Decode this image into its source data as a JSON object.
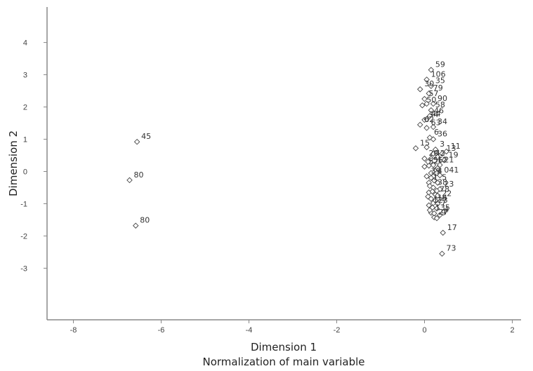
{
  "chart_data": {
    "type": "scatter",
    "xlabel": "Dimension 1",
    "xlabel2": "Normalization of main variable",
    "ylabel": "Dimension 2",
    "xlim": [
      -8.6,
      2.2
    ],
    "ylim": [
      -4.6,
      5.1
    ],
    "xticks": [
      -8,
      -6,
      -4,
      -2,
      0,
      2
    ],
    "yticks": [
      -3,
      -2,
      -1,
      0,
      1,
      2,
      3,
      4
    ],
    "grid": false,
    "marker": "diamond",
    "points": [
      {
        "x": -6.55,
        "y": 0.92,
        "label": "45"
      },
      {
        "x": -6.72,
        "y": -0.27,
        "label": "80"
      },
      {
        "x": -6.58,
        "y": -1.68,
        "label": "80"
      },
      {
        "x": 0.15,
        "y": 3.15,
        "label": "59"
      },
      {
        "x": 0.05,
        "y": 2.85,
        "label": "106"
      },
      {
        "x": 0.15,
        "y": 2.65,
        "label": "35"
      },
      {
        "x": -0.1,
        "y": 2.55,
        "label": "30"
      },
      {
        "x": 0.1,
        "y": 2.42,
        "label": "79"
      },
      {
        "x": 0.0,
        "y": 2.25,
        "label": "57"
      },
      {
        "x": -0.05,
        "y": 2.05,
        "label": "50"
      },
      {
        "x": 0.2,
        "y": 2.1,
        "label": "90"
      },
      {
        "x": 0.05,
        "y": 2.1,
        "label": ""
      },
      {
        "x": 0.15,
        "y": 1.9,
        "label": "58"
      },
      {
        "x": 0.12,
        "y": 1.72,
        "label": "46"
      },
      {
        "x": 0.0,
        "y": 1.6,
        "label": "34"
      },
      {
        "x": 0.05,
        "y": 1.62,
        "label": "44"
      },
      {
        "x": -0.1,
        "y": 1.45,
        "label": "62"
      },
      {
        "x": 0.2,
        "y": 1.38,
        "label": "34"
      },
      {
        "x": 0.05,
        "y": 1.35,
        "label": "63"
      },
      {
        "x": 0.12,
        "y": 1.05,
        "label": "6"
      },
      {
        "x": 0.2,
        "y": 1.0,
        "label": "36"
      },
      {
        "x": -0.2,
        "y": 0.72,
        "label": "15"
      },
      {
        "x": 0.05,
        "y": 0.75,
        "label": ""
      },
      {
        "x": 0.25,
        "y": 0.68,
        "label": "3"
      },
      {
        "x": 0.4,
        "y": 0.55,
        "label": "13"
      },
      {
        "x": 0.5,
        "y": 0.62,
        "label": "11"
      },
      {
        "x": 0.3,
        "y": 0.45,
        "label": ""
      },
      {
        "x": 0.45,
        "y": 0.35,
        "label": "19"
      },
      {
        "x": 0.15,
        "y": 0.4,
        "label": "42"
      },
      {
        "x": 0.0,
        "y": 0.4,
        "label": "20"
      },
      {
        "x": 0.35,
        "y": 0.2,
        "label": "21"
      },
      {
        "x": 0.1,
        "y": 0.18,
        "label": "56"
      },
      {
        "x": 0.2,
        "y": 0.2,
        "label": "12"
      },
      {
        "x": 0.0,
        "y": 0.15,
        "label": "52"
      },
      {
        "x": 0.25,
        "y": 0.05,
        "label": ""
      },
      {
        "x": 0.15,
        "y": -0.05,
        "label": ""
      },
      {
        "x": 0.2,
        "y": -0.15,
        "label": "4"
      },
      {
        "x": 0.05,
        "y": -0.15,
        "label": "39"
      },
      {
        "x": 0.35,
        "y": -0.12,
        "label": "041"
      },
      {
        "x": 0.1,
        "y": -0.35,
        "label": "1"
      },
      {
        "x": 0.3,
        "y": -0.35,
        "label": "5"
      },
      {
        "x": 0.2,
        "y": -0.5,
        "label": "38"
      },
      {
        "x": 0.35,
        "y": -0.55,
        "label": "23"
      },
      {
        "x": 0.1,
        "y": -0.65,
        "label": ""
      },
      {
        "x": 0.25,
        "y": -0.72,
        "label": "78"
      },
      {
        "x": 0.15,
        "y": -0.85,
        "label": ""
      },
      {
        "x": 0.3,
        "y": -0.85,
        "label": "22"
      },
      {
        "x": 0.2,
        "y": -0.98,
        "label": "14"
      },
      {
        "x": 0.3,
        "y": -1.0,
        "label": "6"
      },
      {
        "x": 0.1,
        "y": -1.05,
        "label": "123"
      },
      {
        "x": 0.28,
        "y": -1.15,
        "label": "7"
      },
      {
        "x": 0.15,
        "y": -1.28,
        "label": "135"
      },
      {
        "x": 0.35,
        "y": -1.35,
        "label": "4"
      },
      {
        "x": 0.22,
        "y": -1.42,
        "label": "27"
      },
      {
        "x": 0.28,
        "y": -1.45,
        "label": "9"
      },
      {
        "x": 0.42,
        "y": -1.9,
        "label": "17"
      },
      {
        "x": 0.4,
        "y": -2.55,
        "label": "73"
      },
      {
        "x": 0.15,
        "y": -0.2,
        "label": ""
      },
      {
        "x": 0.22,
        "y": -0.28,
        "label": ""
      },
      {
        "x": 0.12,
        "y": -0.45,
        "label": ""
      },
      {
        "x": 0.28,
        "y": -0.6,
        "label": ""
      },
      {
        "x": 0.18,
        "y": -0.62,
        "label": ""
      },
      {
        "x": 0.08,
        "y": -0.78,
        "label": ""
      },
      {
        "x": 0.25,
        "y": -0.9,
        "label": ""
      },
      {
        "x": 0.18,
        "y": -1.12,
        "label": ""
      },
      {
        "x": 0.12,
        "y": -1.2,
        "label": ""
      },
      {
        "x": 0.3,
        "y": 0.1,
        "label": ""
      },
      {
        "x": 0.2,
        "y": 0.55,
        "label": ""
      },
      {
        "x": 0.08,
        "y": 0.3,
        "label": ""
      },
      {
        "x": 0.28,
        "y": -0.05,
        "label": ""
      },
      {
        "x": 0.3,
        "y": -0.75,
        "label": ""
      },
      {
        "x": 0.22,
        "y": -1.3,
        "label": ""
      }
    ]
  }
}
